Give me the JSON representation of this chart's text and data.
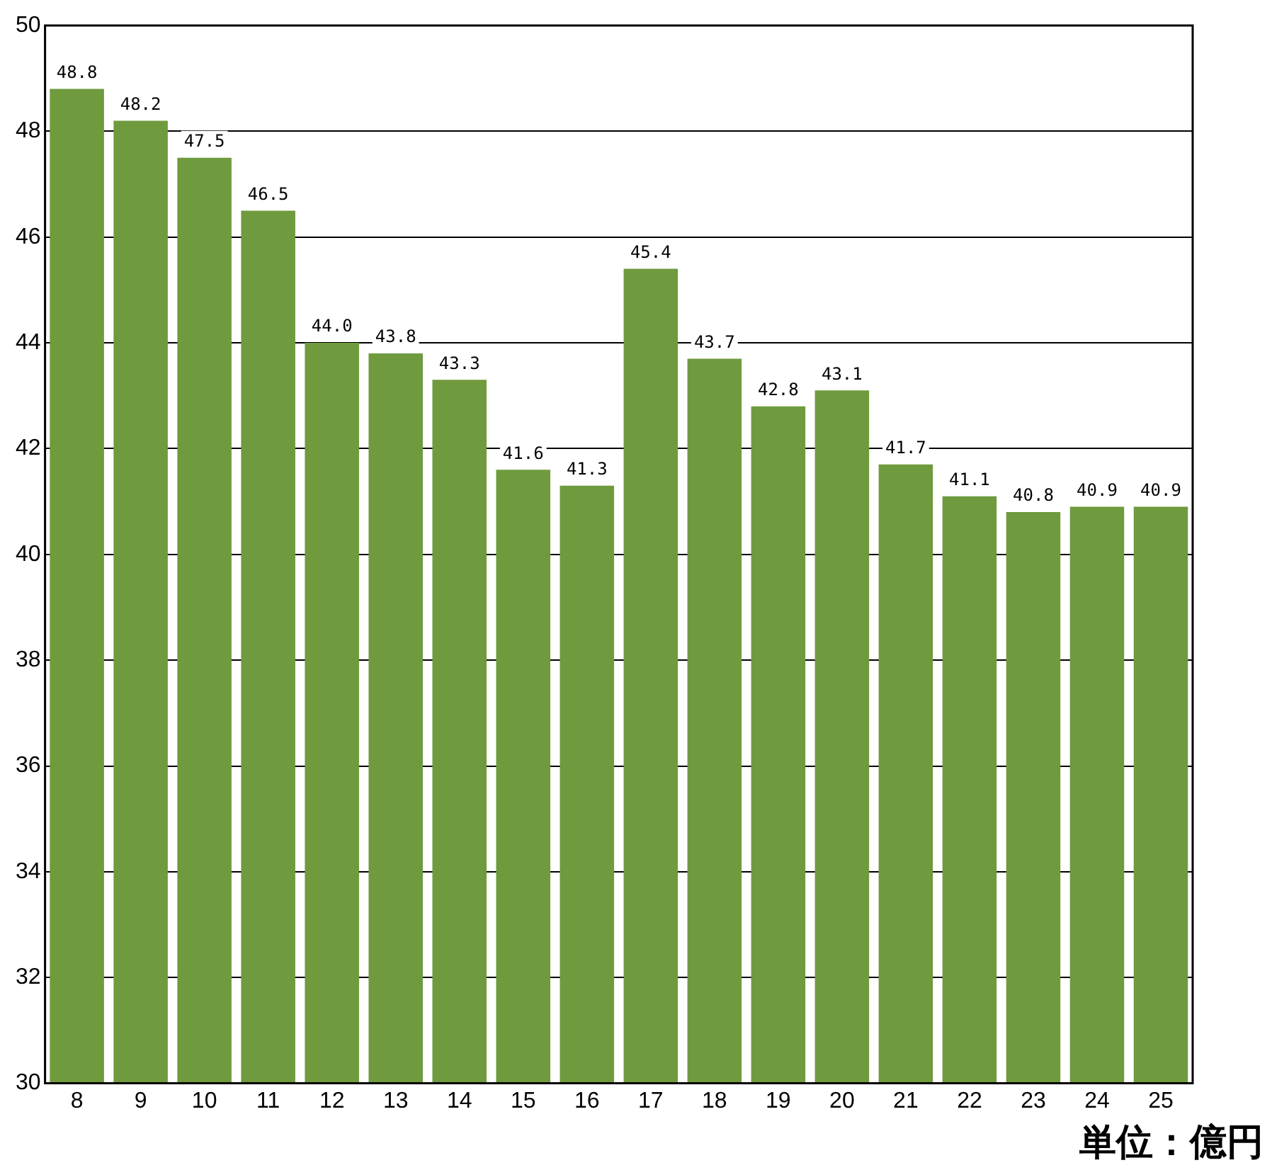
{
  "chart_data": {
    "type": "bar",
    "categories": [
      "8",
      "9",
      "10",
      "11",
      "12",
      "13",
      "14",
      "15",
      "16",
      "17",
      "18",
      "19",
      "20",
      "21",
      "22",
      "23",
      "24",
      "25"
    ],
    "values": [
      48.8,
      48.2,
      47.5,
      46.5,
      44.0,
      43.8,
      43.3,
      41.6,
      41.3,
      45.4,
      43.7,
      42.8,
      43.1,
      41.7,
      41.1,
      40.8,
      40.9,
      40.9
    ],
    "value_labels": [
      "48.8",
      "48.2",
      "47.5",
      "46.5",
      "44.0",
      "43.8",
      "43.3",
      "41.6",
      "41.3",
      "45.4",
      "43.7",
      "42.8",
      "43.1",
      "41.7",
      "41.1",
      "40.8",
      "40.9",
      "40.9"
    ],
    "color": "#6f9a3e",
    "ylim": [
      30,
      50
    ],
    "yticks": [
      30,
      32,
      34,
      36,
      38,
      40,
      42,
      44,
      46,
      48,
      50
    ],
    "grid": "y",
    "legend": false,
    "annotations": [
      "単位：億円"
    ]
  }
}
